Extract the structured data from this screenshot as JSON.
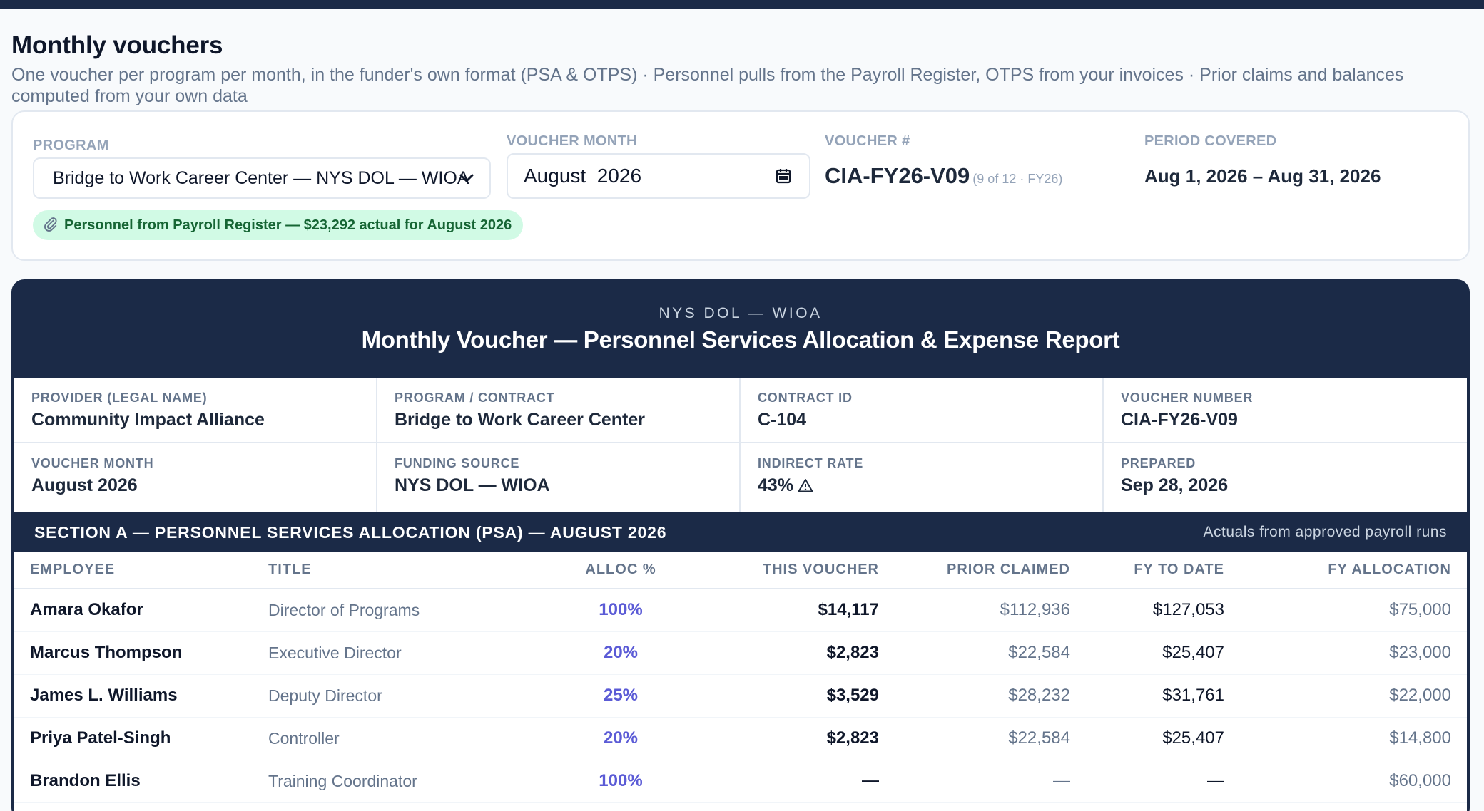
{
  "header": {
    "title": "Monthly vouchers",
    "subtitle": "One voucher per program per month, in the funder's own format (PSA & OTPS) · Personnel pulls from the Payroll Register, OTPS from your invoices · Prior claims and balances computed from your own data"
  },
  "controls": {
    "program_label": "PROGRAM",
    "program_value": "Bridge to Work Career Center — NYS DOL — WIOA",
    "month_label": "VOUCHER MONTH",
    "month_value": "August  2026",
    "voucher_label": "VOUCHER #",
    "voucher_value": "CIA-FY26-V09",
    "voucher_note": "(9 of 12 · FY26)",
    "period_label": "PERIOD COVERED",
    "period_value": "Aug 1, 2026 – Aug 31, 2026",
    "payroll_pill": "Personnel from Payroll Register — $23,292 actual for August 2026"
  },
  "report": {
    "funder": "NYS DOL — WIOA",
    "title": "Monthly Voucher — Personnel Services Allocation & Expense Report",
    "info": [
      {
        "label": "PROVIDER (LEGAL NAME)",
        "value": "Community Impact Alliance"
      },
      {
        "label": "PROGRAM / CONTRACT",
        "value": "Bridge to Work Career Center"
      },
      {
        "label": "CONTRACT ID",
        "value": "C-104"
      },
      {
        "label": "VOUCHER NUMBER",
        "value": "CIA-FY26-V09"
      },
      {
        "label": "VOUCHER MONTH",
        "value": "August 2026"
      },
      {
        "label": "FUNDING SOURCE",
        "value": "NYS DOL — WIOA"
      },
      {
        "label": "INDIRECT RATE",
        "value": "43%"
      },
      {
        "label": "PREPARED",
        "value": "Sep 28, 2026"
      }
    ],
    "section_title": "SECTION A — PERSONNEL SERVICES ALLOCATION (PSA) — AUGUST 2026",
    "section_note": "Actuals from approved payroll runs",
    "columns": [
      "EMPLOYEE",
      "TITLE",
      "ALLOC %",
      "THIS VOUCHER",
      "PRIOR CLAIMED",
      "FY TO DATE",
      "FY ALLOCATION"
    ],
    "rows": [
      {
        "name": "Amara Okafor",
        "title": "Director of Programs",
        "alloc": "100%",
        "voucher": "$14,117",
        "prior": "$112,936",
        "fytd": "$127,053",
        "fyalloc": "$75,000"
      },
      {
        "name": "Marcus Thompson",
        "title": "Executive Director",
        "alloc": "20%",
        "voucher": "$2,823",
        "prior": "$22,584",
        "fytd": "$25,407",
        "fyalloc": "$23,000"
      },
      {
        "name": "James L. Williams",
        "title": "Deputy Director",
        "alloc": "25%",
        "voucher": "$3,529",
        "prior": "$28,232",
        "fytd": "$31,761",
        "fyalloc": "$22,000"
      },
      {
        "name": "Priya Patel-Singh",
        "title": "Controller",
        "alloc": "20%",
        "voucher": "$2,823",
        "prior": "$22,584",
        "fytd": "$25,407",
        "fyalloc": "$14,800"
      },
      {
        "name": "Brandon Ellis",
        "title": "Training Coordinator",
        "alloc": "100%",
        "voucher": "—",
        "prior": "—",
        "fytd": "—",
        "fyalloc": "$60,000"
      }
    ]
  },
  "icons": {
    "program_select": "chevron-down-icon",
    "month_input": "calendar-icon",
    "payroll_pill": "paperclip-icon",
    "indirect_rate": "warning-icon"
  },
  "colors": {
    "navy": "#1b2a47",
    "alloc_accent": "#5b5bd6",
    "pill_bg": "#d1fae5",
    "pill_text": "#166534"
  }
}
